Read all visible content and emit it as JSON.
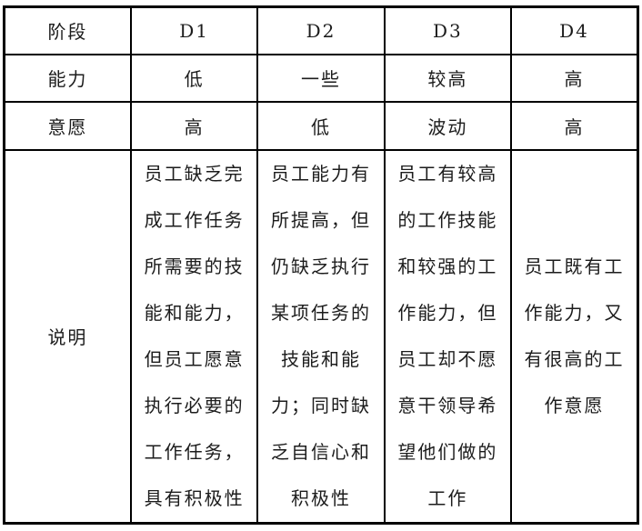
{
  "table": {
    "header": {
      "stage_label": "阶段",
      "stages": [
        "D1",
        "D2",
        "D3",
        "D4"
      ]
    },
    "ability": {
      "label": "能力",
      "values": [
        "低",
        "一些",
        "较高",
        "高"
      ]
    },
    "willingness": {
      "label": "意愿",
      "values": [
        "高",
        "低",
        "波动",
        "高"
      ]
    },
    "description": {
      "label": "说明",
      "values": [
        "员工缺乏完\n成工作任务\n所需要的技\n能和能力，\n但员工愿意\n执行必要的\n工作任务，\n具有积极性",
        "员工能力有\n所提高，但\n仍缺乏执行\n某项任务的\n技能和能\n力；同时缺\n乏自信心和\n积极性",
        "员工有较高\n的工作技能\n和较强的工\n作能力，但\n员工却不愿\n意干领导希\n望他们做的\n工作",
        "员工既有工\n作能力，又\n有很高的工\n作意愿"
      ]
    },
    "colors": {
      "border": "#000000",
      "text": "#1c1c1c",
      "background": "#ffffff"
    }
  }
}
